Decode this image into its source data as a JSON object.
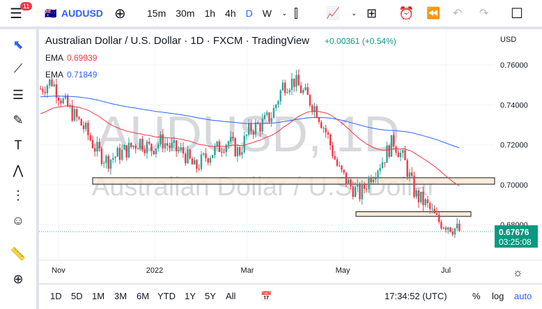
{
  "topbar": {
    "notifications": "11",
    "symbol": "AUDUSD",
    "intervals": [
      "15m",
      "30m",
      "1h",
      "4h",
      "D",
      "W"
    ],
    "active_interval": "D"
  },
  "legend": {
    "title": "Australian Dollar / U.S. Dollar · 1D · FXCM · TradingView",
    "change": "+0.00361 (+0.54%)",
    "ema1_label": "EMA",
    "ema1_value": "0.69939",
    "ema2_label": "EMA",
    "ema2_value": "0.71849"
  },
  "watermark": {
    "line1": "AUDUSD, 1D",
    "line2": "Australian Dollar / U.S. Dollar"
  },
  "price_axis": {
    "currency": "USD",
    "last_price": "0.67676",
    "countdown": "03:25:08"
  },
  "bottombar": {
    "ranges": [
      "1D",
      "5D",
      "1M",
      "3M",
      "6M",
      "YTD",
      "1Y",
      "5Y",
      "All"
    ],
    "time": "17:34:52 (UTC)",
    "pct": "%",
    "log": "log",
    "auto": "auto"
  },
  "colors": {
    "up": "#26a69a",
    "down": "#f23645",
    "ema_fast": "#f23645",
    "ema_slow": "#2962ff",
    "zone": "#fce7d0"
  },
  "chart_data": {
    "type": "candlestick",
    "x_ticks": [
      "Nov",
      "2022",
      "Mar",
      "May",
      "Jul"
    ],
    "y_ticks": [
      "0.76000",
      "0.74000",
      "0.72000",
      "0.70000",
      "0.68000"
    ],
    "ylim": [
      0.67,
      0.767
    ],
    "weekly_closes_approx": {
      "start": "2021-10-22",
      "values": [
        0.748,
        0.752,
        0.742,
        0.735,
        0.728,
        0.718,
        0.712,
        0.715,
        0.718,
        0.722,
        0.718,
        0.722,
        0.718,
        0.716,
        0.708,
        0.714,
        0.718,
        0.722,
        0.716,
        0.728,
        0.73,
        0.735,
        0.75,
        0.752,
        0.745,
        0.738,
        0.725,
        0.708,
        0.7,
        0.695,
        0.705,
        0.712,
        0.722,
        0.712,
        0.695,
        0.69,
        0.682,
        0.68,
        0.6768
      ]
    },
    "zones": [
      {
        "top": 0.7035,
        "bottom": 0.7003,
        "from": "2021-11-30",
        "to": "2022-07-31"
      },
      {
        "top": 0.6865,
        "bottom": 0.6842,
        "from": "2022-05-10",
        "to": "2022-07-18"
      }
    ],
    "ema_fast_last": 0.69939,
    "ema_slow_last": 0.71849,
    "last": 0.67676
  }
}
